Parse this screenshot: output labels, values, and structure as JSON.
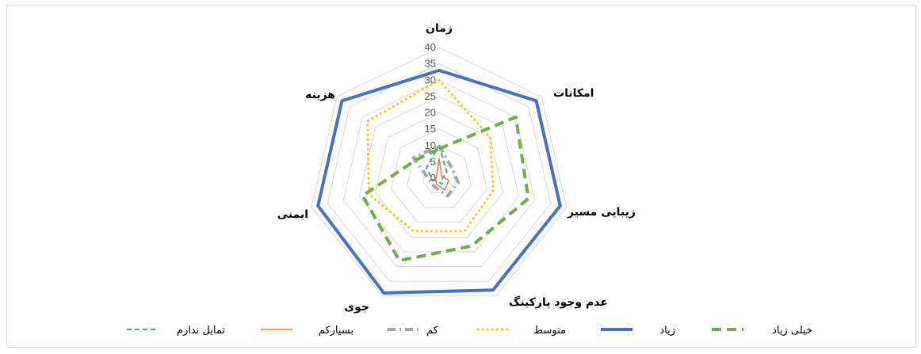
{
  "chart_data": {
    "type": "radar",
    "axes": [
      "زمان",
      "امکانات",
      "زیبایی مسیر",
      "عدم وجود پارکینگ",
      "جوی",
      "ایمنی",
      "هزینه"
    ],
    "rlim": [
      0,
      40
    ],
    "ticks": [
      0,
      5,
      10,
      15,
      20,
      25,
      30,
      35,
      40
    ],
    "tick_labels": [
      "0",
      "5",
      "10",
      "15",
      "20",
      "25",
      "30",
      "35",
      "40"
    ],
    "grid": true,
    "legend_position": "bottom",
    "series": [
      {
        "name": "تمایل ندارم",
        "values": [
          10,
          3,
          1,
          2,
          1,
          2,
          5
        ],
        "color": "#5b9bd5",
        "style": "dashed"
      },
      {
        "name": "بسیارکم",
        "values": [
          6,
          1,
          3,
          4,
          2,
          1,
          1
        ],
        "color": "#ed7d31",
        "style": "solid-thin"
      },
      {
        "name": "کم",
        "values": [
          10,
          5,
          6,
          6,
          3,
          3,
          10
        ],
        "color": "#a5a5a5",
        "style": "dash-dot"
      },
      {
        "name": "متوسط",
        "values": [
          30,
          20,
          17,
          18,
          18,
          22,
          28
        ],
        "color": "#ffc000",
        "style": "dotted"
      },
      {
        "name": "زیاد",
        "values": [
          33,
          38,
          38,
          38,
          39,
          38,
          38
        ],
        "color": "#4472c4",
        "style": "solid"
      },
      {
        "name": "خیلی زیاد",
        "values": [
          9,
          30,
          28,
          23,
          28,
          24,
          9
        ],
        "color": "#70ad47",
        "style": "dashed-thick"
      }
    ]
  }
}
